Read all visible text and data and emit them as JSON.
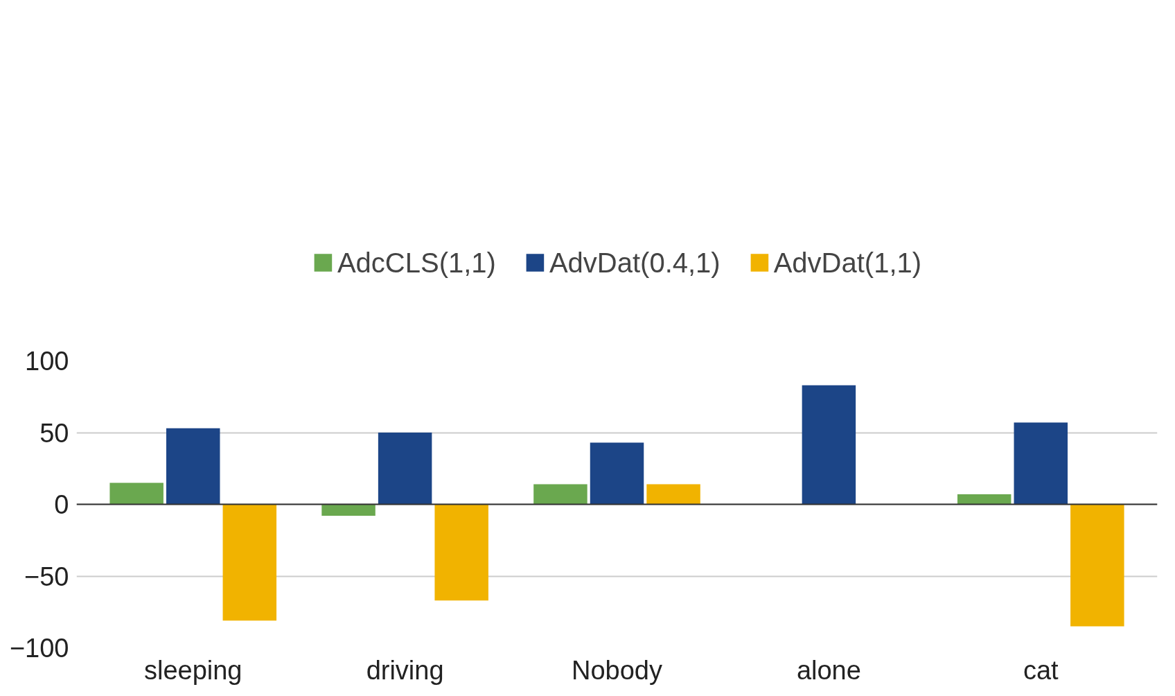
{
  "chart_data": {
    "type": "bar",
    "categories": [
      "sleeping",
      "driving",
      "Nobody",
      "alone",
      "cat"
    ],
    "series": [
      {
        "name": "AdcCLS(1,1)",
        "color": "#6aa84f",
        "values": [
          15,
          -8,
          14,
          null,
          7
        ]
      },
      {
        "name": "AdvDat(0.4,1)",
        "color": "#1c4587",
        "values": [
          53,
          50,
          43,
          83,
          57
        ]
      },
      {
        "name": "AdvDat(1,1)",
        "color": "#f1b300",
        "values": [
          -81,
          -67,
          14,
          null,
          -85
        ]
      }
    ],
    "ylim": [
      -100,
      100
    ],
    "yticks": [
      -100,
      -50,
      0,
      50,
      100
    ],
    "grid": "y",
    "legend": "top"
  }
}
